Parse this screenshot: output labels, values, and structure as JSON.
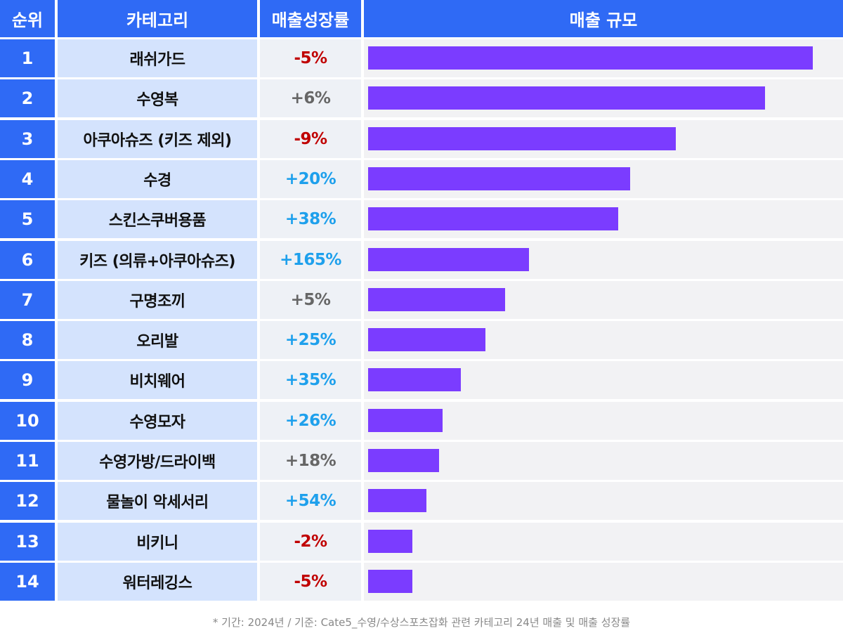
{
  "header": {
    "rank": "순위",
    "category": "카테고리",
    "growth": "매출성장률",
    "scale": "매출 규모"
  },
  "chart_data": {
    "type": "bar",
    "orientation": "horizontal",
    "value_label": "매출 규모",
    "categories": [
      "래쉬가드",
      "수영복",
      "아쿠아슈즈 (키즈 제외)",
      "수경",
      "스킨스쿠버용품",
      "키즈 (의류+아쿠아슈즈)",
      "구명조끼",
      "오리발",
      "비치웨어",
      "수영모자",
      "수영가방/드라이백",
      "물놀이 악세서리",
      "비키니",
      "워터레깅스"
    ],
    "ranks": [
      "1",
      "2",
      "3",
      "4",
      "5",
      "6",
      "7",
      "8",
      "9",
      "10",
      "11",
      "12",
      "13",
      "14"
    ],
    "growth": [
      "-5%",
      "+6%",
      "-9%",
      "+20%",
      "+38%",
      "+165%",
      "+5%",
      "+25%",
      "+35%",
      "+26%",
      "+18%",
      "+54%",
      "-2%",
      "-5%"
    ],
    "growth_trend": [
      "negative",
      "flat",
      "negative",
      "positive",
      "positive",
      "positive",
      "flat",
      "positive",
      "positive",
      "positive",
      "flat",
      "positive",
      "negative",
      "negative"
    ],
    "values": [
      100,
      89.3,
      69.2,
      58.9,
      56.3,
      36.2,
      30.8,
      26.4,
      20.8,
      16.7,
      16.0,
      13.1,
      10.0,
      10.0
    ],
    "xlim": [
      0,
      100
    ],
    "colors": {
      "header": "#2f6af5",
      "bar": "#7b3cff",
      "negative": "#c00000",
      "positive": "#1ea0ec",
      "flat": "#666666"
    }
  },
  "footnote": "* 기간: 2024년 / 기준: Cate5_수영/수상스포츠잡화 관련 카테고리 24년 매출 및 매출 성장률"
}
